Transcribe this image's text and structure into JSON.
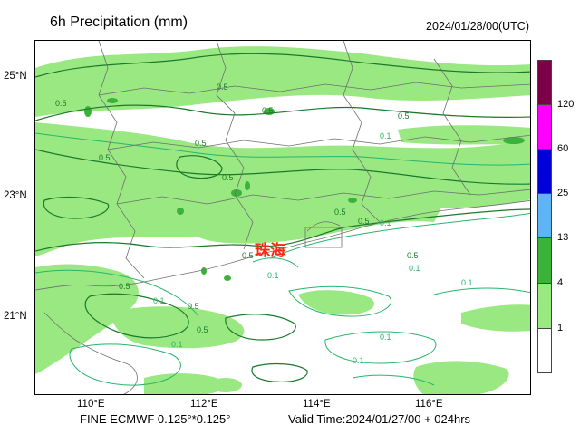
{
  "header": {
    "title": "6h Precipitation (mm)",
    "valid_utc": "2024/01/28/00(UTC)"
  },
  "map": {
    "lat_ticks": [
      "25°N",
      "23°N",
      "21°N"
    ],
    "lon_ticks": [
      "110°E",
      "112°E",
      "114°E",
      "116°E"
    ],
    "city_label": "珠海",
    "contour_labels": [
      "0.5",
      "0.1"
    ]
  },
  "colorbar": {
    "labels": [
      "120",
      "60",
      "25",
      "13",
      "4",
      "1"
    ],
    "colors": [
      "#7b0047",
      "#ff00ff",
      "#0000d9",
      "#5db5f5",
      "#3bb33b",
      "#99e881",
      "#ffffff"
    ]
  },
  "footer": {
    "model": "FINE ECMWF 0.125°*0.125°",
    "valid_time": "Valid Time:2024/01/27/00 + 024hrs"
  }
}
